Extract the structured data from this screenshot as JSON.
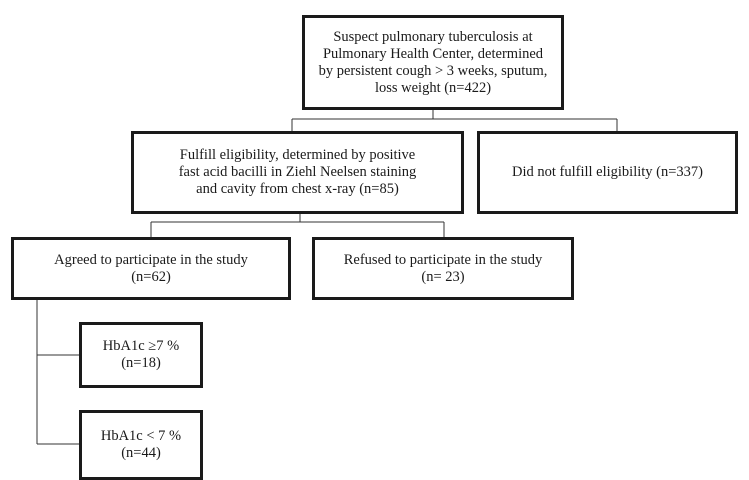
{
  "boxes": {
    "suspect": {
      "lines": [
        "Suspect pulmonary tuberculosis at",
        "Pulmonary Health Center, determined",
        "by persistent cough > 3 weeks, sputum,",
        "loss weight  (n=422)"
      ]
    },
    "fulfill": {
      "lines": [
        "Fulfill eligibility, determined by positive",
        "fast acid bacilli in Ziehl Neelsen staining",
        "and cavity from chest x-ray (n=85)"
      ]
    },
    "not_fulfill": {
      "lines": [
        "Did not fulfill eligibility (n=337)"
      ]
    },
    "agreed": {
      "lines": [
        "Agreed to participate in the study",
        "(n=62)"
      ]
    },
    "refused": {
      "lines": [
        "Refused to participate in the study",
        "(n= 23)"
      ]
    },
    "hba_high": {
      "lines": [
        "HbA1c ≥7 %",
        "(n=18)"
      ]
    },
    "hba_low": {
      "lines": [
        "HbA1c < 7 %",
        "(n=44)"
      ]
    }
  },
  "colors": {
    "border": "#1a1a1a",
    "connector": "#333333",
    "background": "#ffffff"
  }
}
